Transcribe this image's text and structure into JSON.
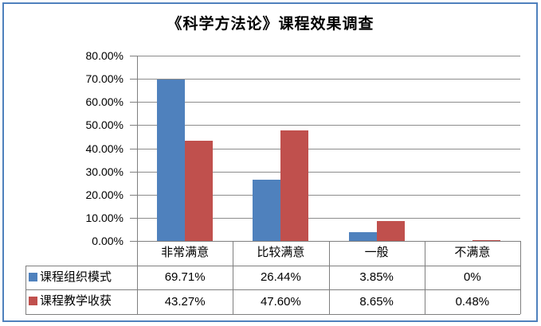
{
  "frame": {
    "border_color": "#4F81BD",
    "background": "#FFFFFF"
  },
  "chart_data": {
    "type": "bar",
    "title": "《科学方法论》课程效果调查",
    "categories": [
      "非常满意",
      "比较满意",
      "一般",
      "不满意"
    ],
    "series": [
      {
        "name": "课程组织模式",
        "color": "#4F81BD",
        "values": [
          69.71,
          26.44,
          3.85,
          0
        ],
        "display_values": [
          "69.71%",
          "26.44%",
          "3.85%",
          "0%"
        ]
      },
      {
        "name": "课程教学收获",
        "color": "#C0504D",
        "values": [
          43.27,
          47.6,
          8.65,
          0.48
        ],
        "display_values": [
          "43.27%",
          "47.60%",
          "8.65%",
          "0.48%"
        ]
      }
    ],
    "ylim": [
      0,
      80
    ],
    "ytick_step": 10,
    "ytick_labels": [
      "0.00%",
      "10.00%",
      "20.00%",
      "30.00%",
      "40.00%",
      "50.00%",
      "60.00%",
      "70.00%",
      "80.00%"
    ],
    "grid": true,
    "legend_position": "data-table-left",
    "grid_color": "#8C8C8C",
    "line_color": "#7F7F7F"
  }
}
